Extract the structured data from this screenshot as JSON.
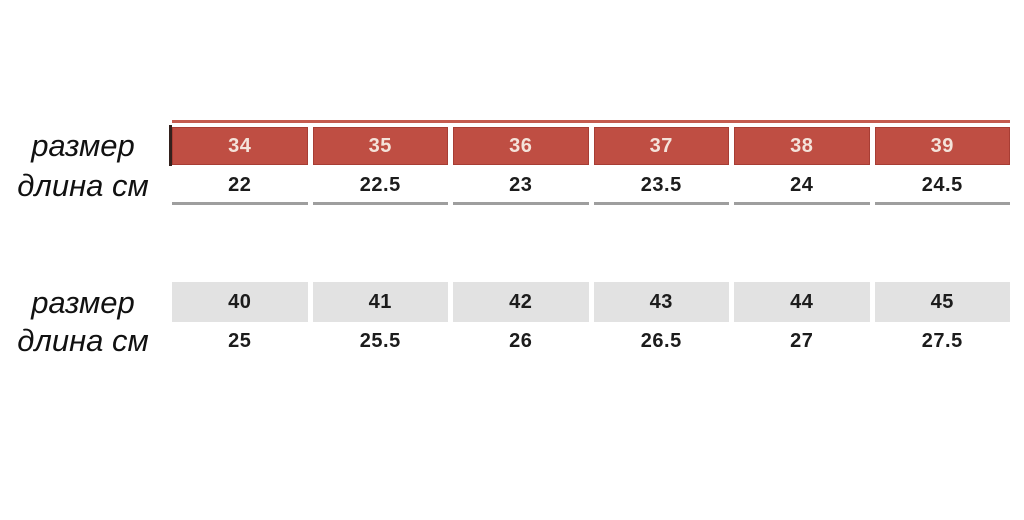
{
  "labels": {
    "size": "размер",
    "length": "длина см"
  },
  "colors": {
    "accent_line": "#c45b4f",
    "left_tick": "#33211d",
    "red_cell": "#bf4e43",
    "red_cell_border": "#a73d34",
    "red_cell_text": "#f4e3da",
    "gray_cell": "#e2e2e2",
    "number_text": "#1c1c1c",
    "underline": "#9e9e9e",
    "label_text": "#111111"
  },
  "chart_data": {
    "type": "table",
    "title": "",
    "layout": "two stacked size-conversion strips, row labels on the left, 6 equal columns each",
    "tables": [
      {
        "name": "sizes-34-39",
        "header_style": "red",
        "rows": [
          {
            "label": "размер",
            "values": [
              "34",
              "35",
              "36",
              "37",
              "38",
              "39"
            ]
          },
          {
            "label": "длина см",
            "values": [
              "22",
              "22.5",
              "23",
              "23.5",
              "24",
              "24.5"
            ]
          }
        ]
      },
      {
        "name": "sizes-40-45",
        "header_style": "gray",
        "rows": [
          {
            "label": "размер",
            "values": [
              "40",
              "41",
              "42",
              "43",
              "44",
              "45"
            ]
          },
          {
            "label": "длина см",
            "values": [
              "25",
              "25.5",
              "26",
              "26.5",
              "27",
              "27.5"
            ]
          }
        ]
      }
    ]
  }
}
